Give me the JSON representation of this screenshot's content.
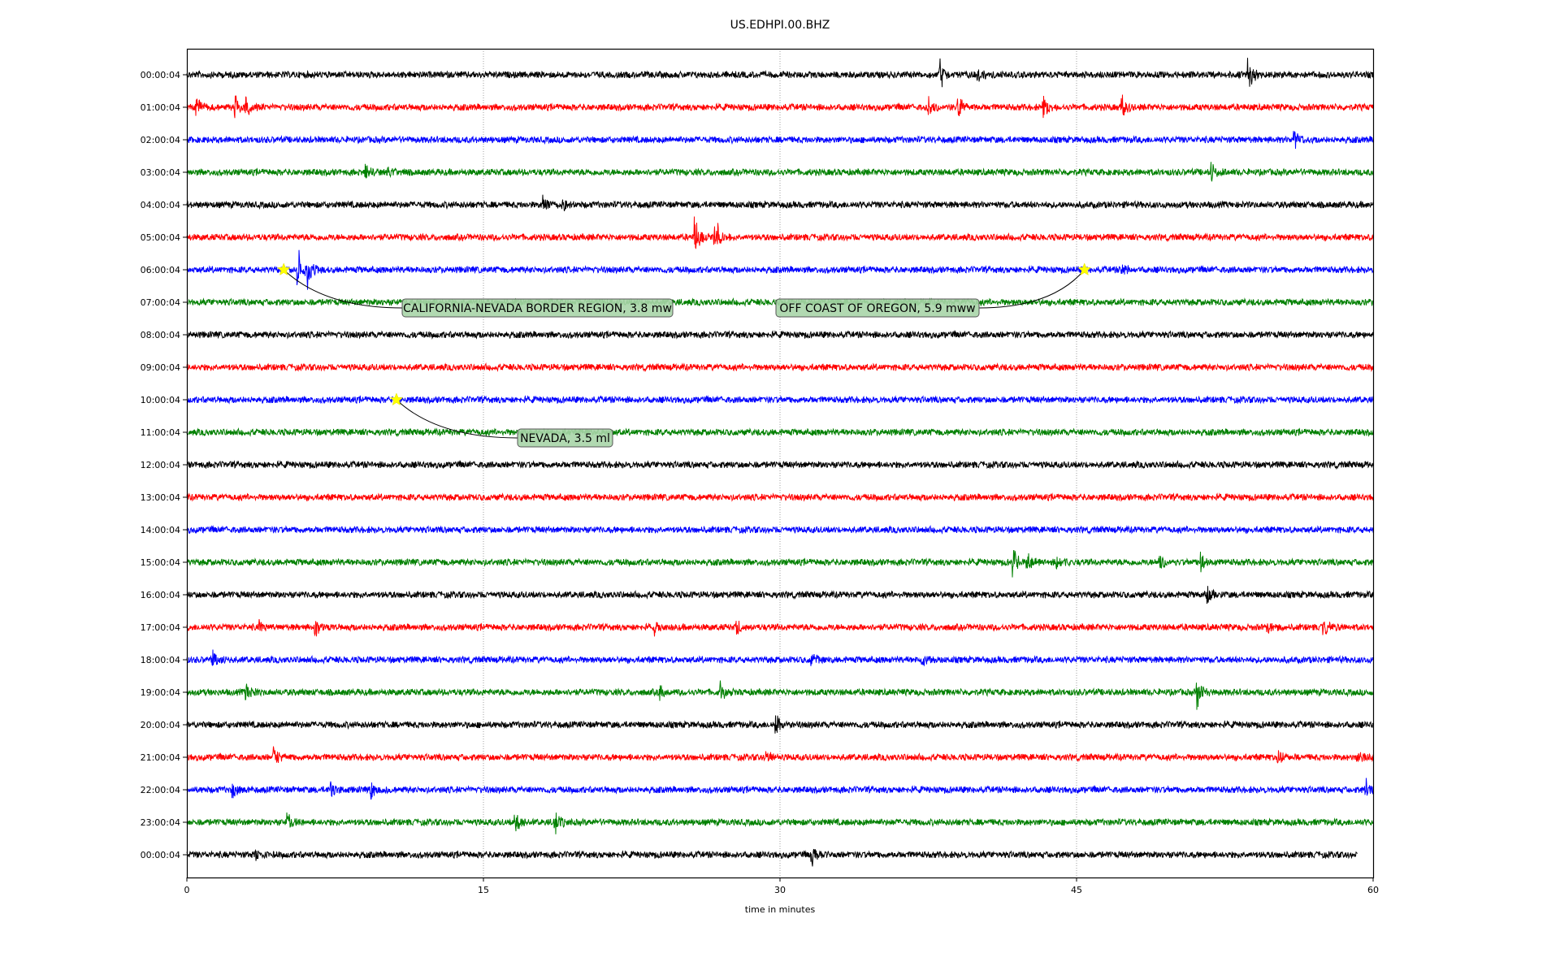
{
  "chart_data": {
    "type": "line",
    "title": "US.EDHPI.00.BHZ",
    "xlabel": "time in minutes",
    "ylabel": "",
    "xlim": [
      0,
      60
    ],
    "x_ticks": [
      "0",
      "15",
      "30",
      "45",
      "60"
    ],
    "x_tick_values": [
      0,
      15,
      30,
      45,
      60
    ],
    "grid": "vertical dotted at x ticks",
    "row_labels": [
      "00:00:04",
      "01:00:04",
      "02:00:04",
      "03:00:04",
      "04:00:04",
      "05:00:04",
      "06:00:04",
      "07:00:04",
      "08:00:04",
      "09:00:04",
      "10:00:04",
      "11:00:04",
      "12:00:04",
      "13:00:04",
      "14:00:04",
      "15:00:04",
      "16:00:04",
      "17:00:04",
      "18:00:04",
      "19:00:04",
      "20:00:04",
      "21:00:04",
      "22:00:04",
      "23:00:04",
      "00:00:04"
    ],
    "trace_colors": [
      "#000000",
      "#ff0000",
      "#0000ff",
      "#008000"
    ],
    "last_row_end_minute": 59.2,
    "bursts": [
      {
        "row": 0,
        "minute": 38.1,
        "amp": 4
      },
      {
        "row": 0,
        "minute": 40,
        "amp": 2
      },
      {
        "row": 0,
        "minute": 53.7,
        "amp": 4
      },
      {
        "row": 1,
        "minute": 0.5,
        "amp": 2.5
      },
      {
        "row": 1,
        "minute": 2.4,
        "amp": 3.5
      },
      {
        "row": 1,
        "minute": 3,
        "amp": 2
      },
      {
        "row": 1,
        "minute": 37.5,
        "amp": 3
      },
      {
        "row": 1,
        "minute": 39,
        "amp": 3
      },
      {
        "row": 1,
        "minute": 43.3,
        "amp": 3.5
      },
      {
        "row": 1,
        "minute": 47.3,
        "amp": 3
      },
      {
        "row": 2,
        "minute": 56,
        "amp": 3
      },
      {
        "row": 3,
        "minute": 9,
        "amp": 2.5
      },
      {
        "row": 3,
        "minute": 10.2,
        "amp": 1.5
      },
      {
        "row": 3,
        "minute": 51.8,
        "amp": 2.5
      },
      {
        "row": 4,
        "minute": 18,
        "amp": 3
      },
      {
        "row": 4,
        "minute": 19,
        "amp": 1.5
      },
      {
        "row": 5,
        "minute": 25.7,
        "amp": 5
      },
      {
        "row": 5,
        "minute": 26.7,
        "amp": 5.5
      },
      {
        "row": 6,
        "minute": 5.6,
        "amp": 6
      },
      {
        "row": 6,
        "minute": 6.1,
        "amp": 4
      },
      {
        "row": 6,
        "minute": 47.3,
        "amp": 1.5
      },
      {
        "row": 15,
        "minute": 41.8,
        "amp": 3
      },
      {
        "row": 15,
        "minute": 42.5,
        "amp": 2
      },
      {
        "row": 15,
        "minute": 44,
        "amp": 2
      },
      {
        "row": 15,
        "minute": 49.2,
        "amp": 2.5
      },
      {
        "row": 15,
        "minute": 51.3,
        "amp": 2
      },
      {
        "row": 16,
        "minute": 51.6,
        "amp": 2
      },
      {
        "row": 17,
        "minute": 3.7,
        "amp": 1.5
      },
      {
        "row": 17,
        "minute": 6.5,
        "amp": 2
      },
      {
        "row": 17,
        "minute": 23.7,
        "amp": 1.5
      },
      {
        "row": 17,
        "minute": 27.8,
        "amp": 1.5
      },
      {
        "row": 17,
        "minute": 54.6,
        "amp": 2
      },
      {
        "row": 17,
        "minute": 57.5,
        "amp": 2
      },
      {
        "row": 18,
        "minute": 1.3,
        "amp": 2
      },
      {
        "row": 18,
        "minute": 31.6,
        "amp": 2
      },
      {
        "row": 18,
        "minute": 37.2,
        "amp": 1.5
      },
      {
        "row": 19,
        "minute": 3,
        "amp": 2.5
      },
      {
        "row": 19,
        "minute": 23.9,
        "amp": 2
      },
      {
        "row": 19,
        "minute": 27,
        "amp": 2
      },
      {
        "row": 19,
        "minute": 51.1,
        "amp": 4
      },
      {
        "row": 20,
        "minute": 29.8,
        "amp": 2.5
      },
      {
        "row": 21,
        "minute": 4.4,
        "amp": 3
      },
      {
        "row": 21,
        "minute": 29.3,
        "amp": 2.5
      },
      {
        "row": 21,
        "minute": 55.2,
        "amp": 2
      },
      {
        "row": 21,
        "minute": 59.2,
        "amp": 2
      },
      {
        "row": 22,
        "minute": 2.3,
        "amp": 2
      },
      {
        "row": 22,
        "minute": 7.3,
        "amp": 2
      },
      {
        "row": 22,
        "minute": 9.3,
        "amp": 2
      },
      {
        "row": 22,
        "minute": 59.6,
        "amp": 2.5
      },
      {
        "row": 23,
        "minute": 5.1,
        "amp": 2.5
      },
      {
        "row": 23,
        "minute": 16.6,
        "amp": 3
      },
      {
        "row": 23,
        "minute": 18.6,
        "amp": 3
      },
      {
        "row": 24,
        "minute": 3.5,
        "amp": 1.5
      },
      {
        "row": 24,
        "minute": 31.6,
        "amp": 3.5
      }
    ],
    "annotations": [
      {
        "text": "CALIFORNIA-NEVADA BORDER REGION, 3.8 mw",
        "row": 6,
        "minute": 4.9
      },
      {
        "text": "OFF COAST OF OREGON, 5.9 mww",
        "row": 6,
        "minute": 45.4
      },
      {
        "text": "NEVADA, 3.5 ml",
        "row": 10,
        "minute": 10.6
      }
    ]
  }
}
